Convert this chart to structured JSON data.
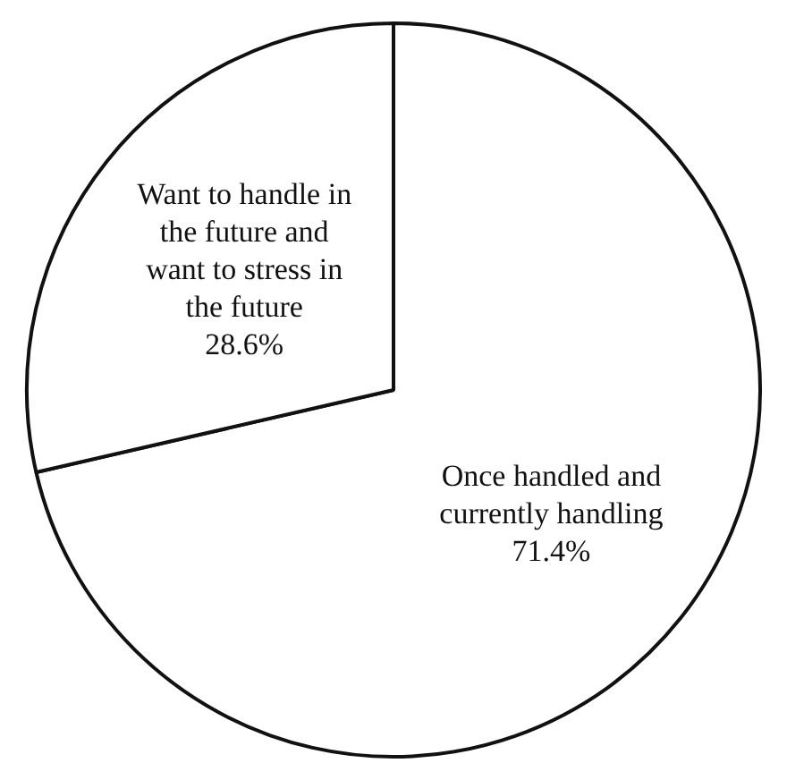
{
  "chart_data": {
    "type": "pie",
    "categories": [
      "Once handled and currently handling",
      "Want to handle in the future and want to stress in the future"
    ],
    "values": [
      71.4,
      28.6
    ],
    "colors": [
      "#ffffff",
      "#ffffff"
    ],
    "value_labels": [
      "71.4%",
      "28.6%"
    ],
    "legend": false
  }
}
